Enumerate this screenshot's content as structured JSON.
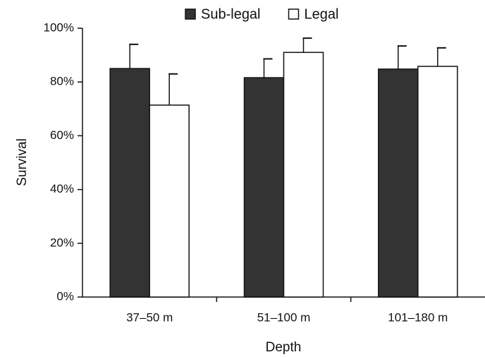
{
  "chart_data": {
    "type": "bar",
    "x_label": "Depth",
    "y_label": "Survival",
    "categories": [
      "37–50 m",
      "51–100 m",
      "101–180 m"
    ],
    "series": [
      {
        "name": "Sub-legal",
        "color": "#333333",
        "values": [
          85,
          81.6,
          84.8
        ],
        "errors": [
          9,
          7,
          8.6
        ]
      },
      {
        "name": "Legal",
        "color": "#ffffff",
        "values": [
          71.4,
          91,
          85.8
        ],
        "errors": [
          11.6,
          5.3,
          6.9
        ]
      }
    ],
    "ylim": [
      0,
      100
    ],
    "yticks": [
      {
        "value": 0,
        "label": "0%"
      },
      {
        "value": 20,
        "label": "20%"
      },
      {
        "value": 40,
        "label": "40%"
      },
      {
        "value": 60,
        "label": "60%"
      },
      {
        "value": 80,
        "label": "80%"
      },
      {
        "value": 100,
        "label": "100%"
      }
    ],
    "legend": "top",
    "grid": false
  }
}
